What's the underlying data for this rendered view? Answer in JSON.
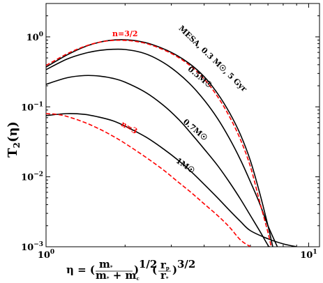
{
  "chart_data": {
    "type": "line",
    "xscale": "log",
    "yscale": "log",
    "xlim": [
      1,
      11
    ],
    "ylim": [
      0.001,
      3
    ],
    "xlabel": "η = (m*/(m* + mc))^1/2 (rp/r*)^3/2",
    "ylabel": "T₂(η)",
    "x_ticks": [
      {
        "value": 1,
        "label_base": "10",
        "label_exp": "0"
      },
      {
        "value": 10,
        "label_base": "10",
        "label_exp": "1"
      }
    ],
    "y_ticks": [
      {
        "value": 0.001,
        "label_base": "10",
        "label_exp": "−3"
      },
      {
        "value": 0.01,
        "label_base": "10",
        "label_exp": "−2"
      },
      {
        "value": 0.1,
        "label_base": "10",
        "label_exp": "−1"
      },
      {
        "value": 1,
        "label_base": "10",
        "label_exp": "0"
      }
    ],
    "grid": false,
    "series": [
      {
        "name": "MESA, 0.3 M☉, 5 Gyr",
        "color": "#000000",
        "dash": "solid",
        "points": [
          [
            1.0,
            0.37
          ],
          [
            1.2,
            0.55
          ],
          [
            1.4,
            0.72
          ],
          [
            1.6,
            0.84
          ],
          [
            1.8,
            0.9
          ],
          [
            2.0,
            0.91
          ],
          [
            2.2,
            0.88
          ],
          [
            2.5,
            0.79
          ],
          [
            3.0,
            0.6
          ],
          [
            3.5,
            0.42
          ],
          [
            4.0,
            0.27
          ],
          [
            4.5,
            0.155
          ],
          [
            5.0,
            0.082
          ],
          [
            5.5,
            0.04
          ],
          [
            6.0,
            0.017
          ],
          [
            6.5,
            0.006
          ],
          [
            7.0,
            0.002
          ],
          [
            7.3,
            0.001
          ]
        ]
      },
      {
        "name": "0.5M☉",
        "color": "#000000",
        "dash": "solid",
        "points": [
          [
            1.0,
            0.34
          ],
          [
            1.2,
            0.48
          ],
          [
            1.4,
            0.58
          ],
          [
            1.6,
            0.64
          ],
          [
            1.8,
            0.665
          ],
          [
            2.0,
            0.66
          ],
          [
            2.3,
            0.6
          ],
          [
            2.6,
            0.5
          ],
          [
            3.0,
            0.36
          ],
          [
            3.5,
            0.22
          ],
          [
            4.0,
            0.125
          ],
          [
            4.5,
            0.068
          ],
          [
            5.0,
            0.035
          ],
          [
            5.5,
            0.0175
          ],
          [
            6.0,
            0.0085
          ],
          [
            6.5,
            0.0042
          ],
          [
            7.0,
            0.002
          ],
          [
            7.6,
            0.001
          ]
        ]
      },
      {
        "name": "0.7M☉",
        "color": "#000000",
        "dash": "solid",
        "points": [
          [
            1.0,
            0.21
          ],
          [
            1.2,
            0.26
          ],
          [
            1.4,
            0.28
          ],
          [
            1.6,
            0.275
          ],
          [
            1.8,
            0.255
          ],
          [
            2.0,
            0.225
          ],
          [
            2.4,
            0.16
          ],
          [
            2.8,
            0.105
          ],
          [
            3.2,
            0.066
          ],
          [
            3.6,
            0.04
          ],
          [
            4.0,
            0.025
          ],
          [
            4.5,
            0.0145
          ],
          [
            5.0,
            0.0083
          ],
          [
            5.5,
            0.0048
          ],
          [
            6.0,
            0.0028
          ],
          [
            6.5,
            0.0017
          ],
          [
            7.0,
            0.00105
          ],
          [
            7.1,
            0.001
          ]
        ]
      },
      {
        "name": "1M☉",
        "color": "#000000",
        "dash": "solid",
        "points": [
          [
            1.0,
            0.075
          ],
          [
            1.2,
            0.08
          ],
          [
            1.4,
            0.078
          ],
          [
            1.6,
            0.071
          ],
          [
            1.8,
            0.063
          ],
          [
            2.0,
            0.053
          ],
          [
            2.4,
            0.037
          ],
          [
            2.8,
            0.025
          ],
          [
            3.2,
            0.017
          ],
          [
            3.6,
            0.0115
          ],
          [
            4.0,
            0.0078
          ],
          [
            4.5,
            0.005
          ],
          [
            5.0,
            0.0033
          ],
          [
            5.5,
            0.0023
          ],
          [
            6.0,
            0.0017
          ],
          [
            7.0,
            0.0013
          ],
          [
            8.0,
            0.0011
          ],
          [
            9.0,
            0.001
          ]
        ]
      },
      {
        "name": "n=3/2",
        "color": "#ff0000",
        "dash": "dashed",
        "points": [
          [
            1.0,
            0.39
          ],
          [
            1.2,
            0.57
          ],
          [
            1.4,
            0.73
          ],
          [
            1.6,
            0.84
          ],
          [
            1.8,
            0.89
          ],
          [
            2.0,
            0.89
          ],
          [
            2.2,
            0.86
          ],
          [
            2.5,
            0.77
          ],
          [
            3.0,
            0.58
          ],
          [
            3.5,
            0.4
          ],
          [
            4.0,
            0.25
          ],
          [
            4.5,
            0.14
          ],
          [
            5.0,
            0.072
          ],
          [
            5.5,
            0.034
          ],
          [
            6.0,
            0.014
          ],
          [
            6.5,
            0.0045
          ],
          [
            7.0,
            0.0016
          ],
          [
            7.2,
            0.001
          ]
        ]
      },
      {
        "name": "n=3",
        "color": "#ff0000",
        "dash": "dashed",
        "points": [
          [
            1.0,
            0.08
          ],
          [
            1.1,
            0.078
          ],
          [
            1.2,
            0.073
          ],
          [
            1.4,
            0.06
          ],
          [
            1.6,
            0.048
          ],
          [
            1.8,
            0.038
          ],
          [
            2.0,
            0.03
          ],
          [
            2.4,
            0.019
          ],
          [
            2.8,
            0.0125
          ],
          [
            3.2,
            0.0083
          ],
          [
            3.6,
            0.0058
          ],
          [
            4.0,
            0.0041
          ],
          [
            4.5,
            0.0028
          ],
          [
            5.0,
            0.0019
          ],
          [
            5.5,
            0.00125
          ],
          [
            6.0,
            0.001
          ]
        ]
      }
    ],
    "annotations": [
      {
        "text": "n=3/2",
        "color": "#ff0000",
        "x": 2.0,
        "y": 1.02,
        "rotate": 0
      },
      {
        "text": "MESA, 0.3 M☉, 5 Gyr",
        "color": "#000000",
        "x": 4.25,
        "y": 0.46,
        "rotate": 44
      },
      {
        "text": "0.5M☉",
        "color": "#000000",
        "x": 3.8,
        "y": 0.25,
        "rotate": 40
      },
      {
        "text": "0.7M☉",
        "color": "#000000",
        "x": 3.65,
        "y": 0.044,
        "rotate": 40
      },
      {
        "text": "1M☉",
        "color": "#000000",
        "x": 3.35,
        "y": 0.0135,
        "rotate": 34
      },
      {
        "text": "n=3",
        "color": "#ff0000",
        "x": 2.05,
        "y": 0.047,
        "rotate": 30
      }
    ]
  }
}
